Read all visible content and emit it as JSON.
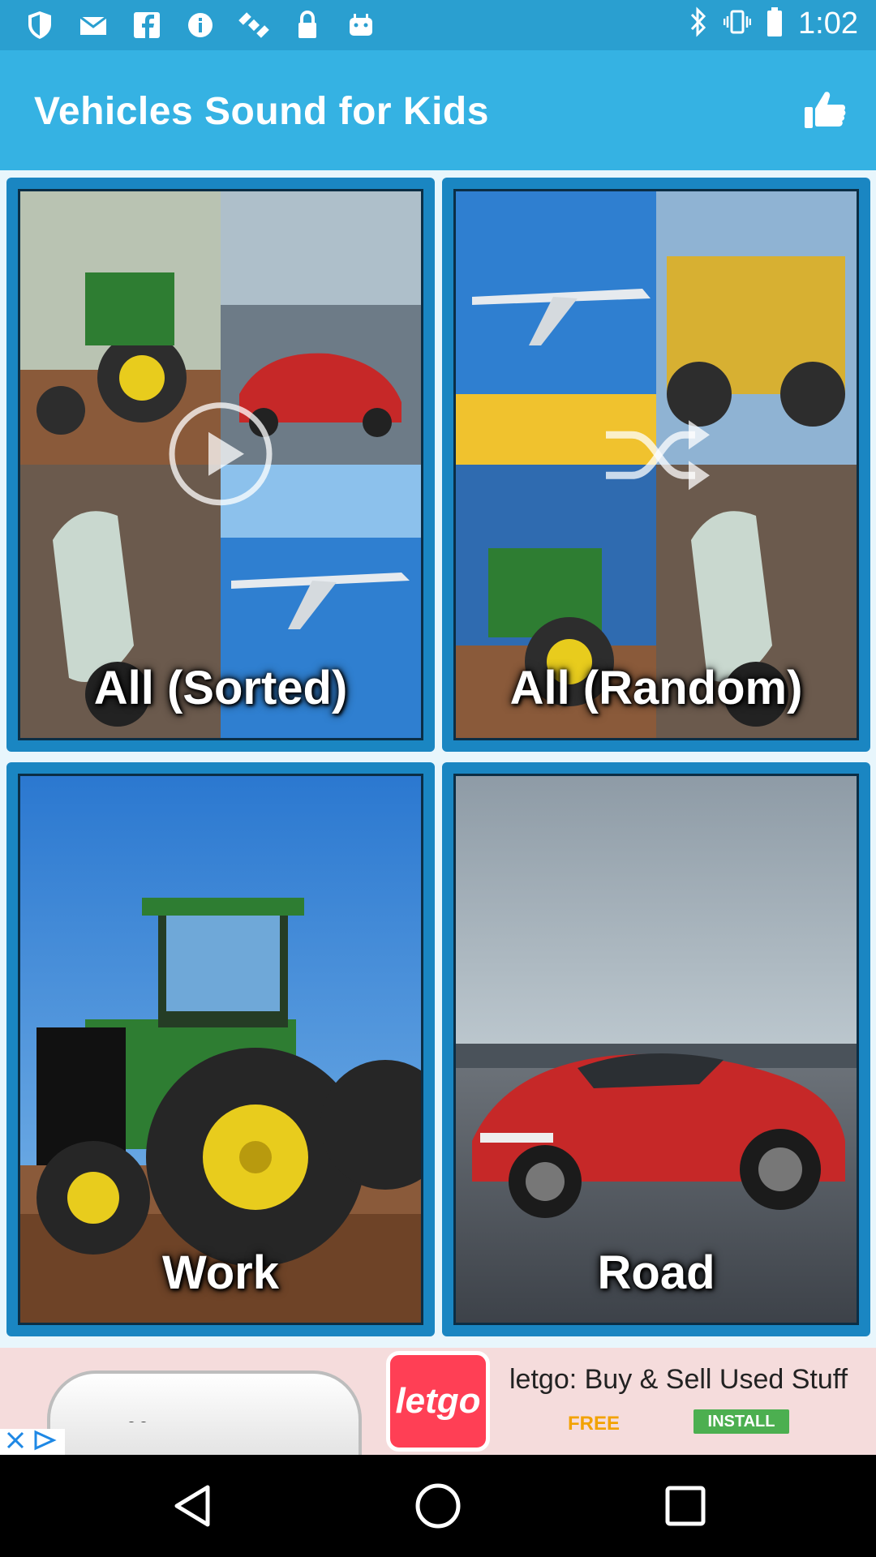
{
  "status_bar": {
    "time": "1:02",
    "icons": [
      "shield-icon",
      "mail-icon",
      "facebook-icon",
      "info-icon",
      "satellite-icon",
      "lock-icon",
      "android-icon"
    ]
  },
  "app_bar": {
    "title": "Vehicles Sound for Kids",
    "like_icon": "thumbs-up-icon"
  },
  "tiles": [
    {
      "label": "All (Sorted)",
      "overlay": "play-icon"
    },
    {
      "label": "All (Random)",
      "overlay": "shuffle-icon"
    },
    {
      "label": "Work"
    },
    {
      "label": "Road"
    }
  ],
  "ad": {
    "logo_text": "letgo",
    "headline": "letgo: Buy & Sell Used Stuff",
    "free_label": "FREE",
    "install_label": "INSTALL"
  },
  "colors": {
    "status_bar": "#2a9fd0",
    "app_bar": "#35b2e3",
    "tile_frame": "#1a86c2",
    "ad_accent": "#ff3f55",
    "install_button": "#4caf50"
  }
}
